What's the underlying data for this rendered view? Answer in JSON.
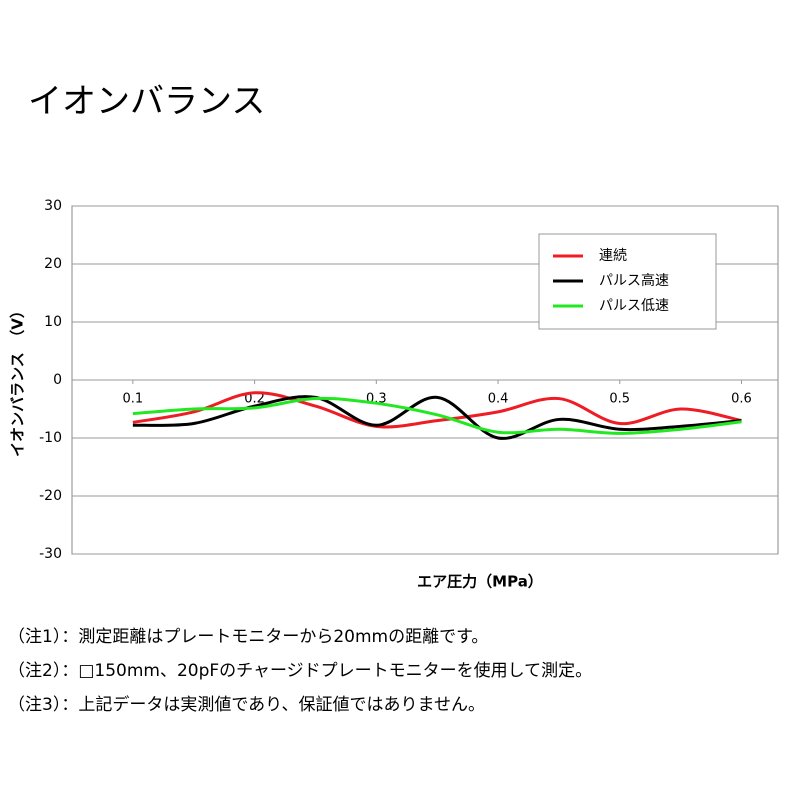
{
  "chart_data": {
    "type": "line",
    "title": "イオンバランス",
    "y_label": "イオンバランス　（V）",
    "x_label": "エア圧力（MPa）",
    "x": [
      0.1,
      0.15,
      0.2,
      0.25,
      0.3,
      0.35,
      0.4,
      0.45,
      0.5,
      0.55,
      0.6
    ],
    "series": [
      {
        "name": "連続",
        "color": "#ee1c25",
        "values": [
          -7.3,
          -5.5,
          -2.2,
          -4.5,
          -8,
          -7,
          -5.5,
          -3.2,
          -7.5,
          -5,
          -7
        ]
      },
      {
        "name": "パルス高速",
        "color": "#000000",
        "values": [
          -7.8,
          -7.5,
          -4.5,
          -3,
          -7.8,
          -3,
          -10,
          -6.8,
          -8.5,
          -8,
          -7
        ]
      },
      {
        "name": "パルス低速",
        "color": "#22e822",
        "values": [
          -5.8,
          -5,
          -4.8,
          -3.2,
          -4,
          -6,
          -9,
          -8.5,
          -9.2,
          -8.5,
          -7.2
        ]
      }
    ],
    "xlim": [
      0.05,
      0.63
    ],
    "xticks": [
      0.1,
      0.2,
      0.3,
      0.4,
      0.5,
      0.6
    ],
    "ylim": [
      -30,
      30
    ],
    "yticks": [
      -30,
      -20,
      -10,
      0,
      10,
      20,
      30
    ],
    "grid": true,
    "legend": "upper right",
    "annotations": [
      "（注1）：測定距離はプレートモニターから20mmの距離です。",
      "（注2）：□150mm、20pFのチャージドプレートモニターを使用して測定。",
      "（注3）：上記データは実測値であり、保証値ではありません。"
    ]
  }
}
